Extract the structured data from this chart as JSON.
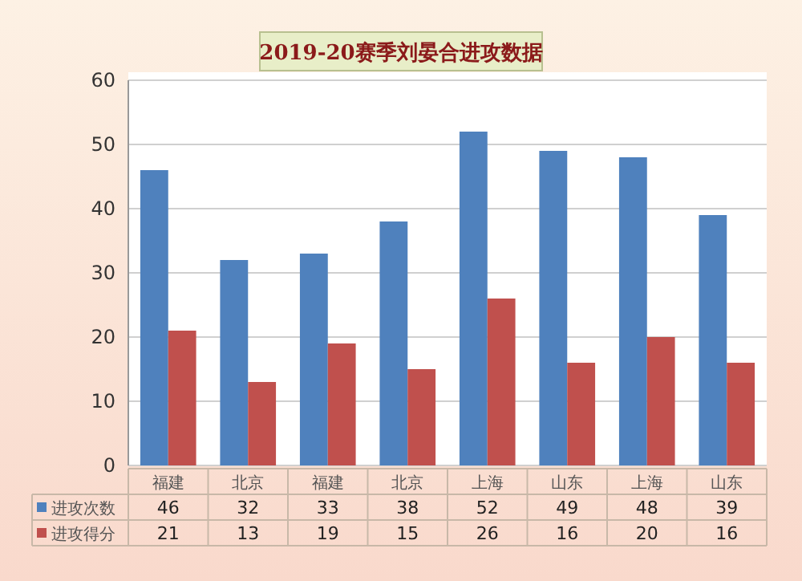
{
  "chart_data": {
    "type": "bar",
    "title": "2019-20赛季刘晏合进攻数据",
    "categories": [
      "福建",
      "北京",
      "福建",
      "北京",
      "上海",
      "山东",
      "上海",
      "山东"
    ],
    "series": [
      {
        "name": "进攻次数",
        "color": "#4f81bd",
        "values": [
          46,
          32,
          33,
          38,
          52,
          49,
          48,
          39
        ]
      },
      {
        "name": "进攻得分",
        "color": "#c0504d",
        "values": [
          21,
          13,
          19,
          15,
          26,
          16,
          20,
          16
        ]
      }
    ],
    "ylim": [
      0,
      60
    ],
    "yticks": [
      0,
      10,
      20,
      30,
      40,
      50,
      60
    ],
    "grid": "y",
    "legend": "bottom",
    "data_labels": true
  }
}
